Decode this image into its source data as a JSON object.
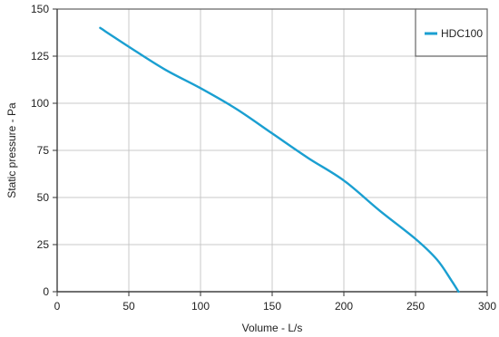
{
  "chart_data": {
    "type": "line",
    "title": "",
    "xlabel": "Volume - L/s",
    "ylabel": "Static pressure - Pa",
    "xlim": [
      0,
      300
    ],
    "ylim": [
      0,
      150
    ],
    "x_ticks": [
      0,
      50,
      100,
      150,
      200,
      250,
      300
    ],
    "y_ticks": [
      0,
      25,
      50,
      75,
      100,
      125,
      150
    ],
    "x_tick_labels": [
      "0",
      "50",
      "100",
      "150",
      "200",
      "250",
      "300"
    ],
    "y_tick_labels": [
      "0",
      "25",
      "50",
      "75",
      "100",
      "125",
      "150"
    ],
    "grid": true,
    "legend_position": "top-right",
    "series": [
      {
        "name": "HDC100",
        "color": "#1a9fd1",
        "x": [
          30,
          50,
          75,
          100,
          125,
          150,
          175,
          200,
          225,
          250,
          265,
          275,
          280
        ],
        "y": [
          140,
          130,
          118,
          108,
          97,
          84,
          71,
          59,
          43,
          28,
          17,
          6,
          0
        ]
      }
    ]
  }
}
